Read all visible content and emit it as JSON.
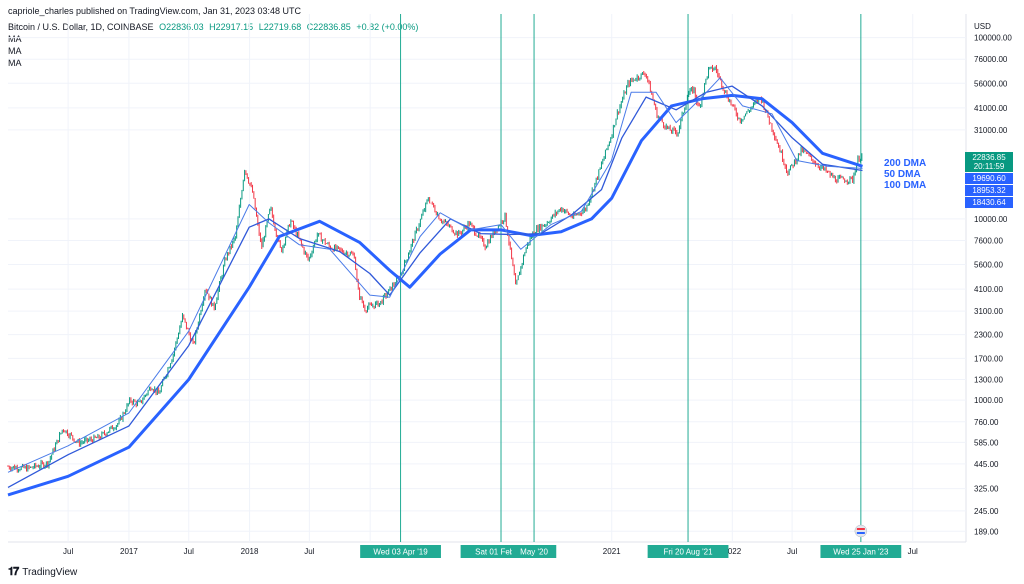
{
  "publisher_line": "capriole_charles published on TradingView.com, Jan 31, 2023 03:48 UTC",
  "symbol_line": {
    "name": "Bitcoin / U.S. Dollar, 1D, COINBASE",
    "open": "O22836.03",
    "high": "H22917.15",
    "low": "L22719.68",
    "close": "C22836.85",
    "change": "+0.82 (+0.00%)"
  },
  "ma_labels": [
    "MA",
    "MA",
    "MA"
  ],
  "currency_label": "USD",
  "footer_brand": "TradingView",
  "colors": {
    "grid": "#f0f3fa",
    "vline": "#22ab94",
    "dma200": "#2962ff",
    "dma100": "#3059d9",
    "dma50": "#4a7be8",
    "up": "#089981",
    "down": "#f23645",
    "badge_price": "#089981",
    "badge_blue": "#2962ff"
  },
  "chart_data": {
    "type": "line",
    "title": "Bitcoin / U.S. Dollar, 1D, COINBASE",
    "yscale": "log",
    "ylim": [
      165,
      135000
    ],
    "xlim": [
      "2016-01-01",
      "2023-11-15"
    ],
    "y_ticks": [
      "100000.00",
      "76000.00",
      "56000.00",
      "41000.00",
      "31000.00",
      "10000.00",
      "7600.00",
      "5600.00",
      "4100.00",
      "3100.00",
      "2300.00",
      "1700.00",
      "1300.00",
      "1000.00",
      "760.00",
      "585.00",
      "445.00",
      "325.00",
      "245.00",
      "189.00"
    ],
    "x_ticks": [
      {
        "date": "2016-07-01",
        "label": "Jul"
      },
      {
        "date": "2017-01-01",
        "label": "2017"
      },
      {
        "date": "2017-07-01",
        "label": "Jul"
      },
      {
        "date": "2018-01-01",
        "label": "2018"
      },
      {
        "date": "2018-07-01",
        "label": "Jul"
      },
      {
        "date": "2019-01-01",
        "label": "20"
      },
      {
        "date": "2021-01-01",
        "label": "2021"
      },
      {
        "date": "2022-01-01",
        "label": "2022"
      },
      {
        "date": "2022-07-01",
        "label": "Jul"
      },
      {
        "date": "2023-07-01",
        "label": "Jul"
      }
    ],
    "vertical_markers": [
      {
        "date": "2019-04-03",
        "label": "Wed 03 Apr '19"
      },
      {
        "date": "2020-02-01",
        "label": "Sat 01 Feb '20"
      },
      {
        "date": "2020-05-11",
        "label": "May '20"
      },
      {
        "date": "2021-08-20",
        "label": "Fri 20 Aug '21"
      },
      {
        "date": "2023-01-25",
        "label": "Wed 25 Jan '23"
      }
    ],
    "price_series": {
      "name": "Bitcoin / U.S. Dollar",
      "points": [
        [
          "2016-01-01",
          430
        ],
        [
          "2016-03-01",
          420
        ],
        [
          "2016-05-01",
          450
        ],
        [
          "2016-06-15",
          700
        ],
        [
          "2016-08-01",
          580
        ],
        [
          "2016-10-01",
          620
        ],
        [
          "2016-12-01",
          750
        ],
        [
          "2017-01-05",
          1000
        ],
        [
          "2017-02-01",
          950
        ],
        [
          "2017-03-10",
          1200
        ],
        [
          "2017-04-01",
          1080
        ],
        [
          "2017-05-15",
          1800
        ],
        [
          "2017-06-12",
          2900
        ],
        [
          "2017-07-15",
          2000
        ],
        [
          "2017-08-20",
          4200
        ],
        [
          "2017-09-15",
          3200
        ],
        [
          "2017-10-20",
          6000
        ],
        [
          "2017-11-20",
          8000
        ],
        [
          "2017-12-17",
          19000
        ],
        [
          "2018-01-10",
          14000
        ],
        [
          "2018-02-06",
          6900
        ],
        [
          "2018-03-05",
          11500
        ],
        [
          "2018-04-06",
          6600
        ],
        [
          "2018-05-05",
          9800
        ],
        [
          "2018-06-28",
          5900
        ],
        [
          "2018-07-25",
          8200
        ],
        [
          "2018-09-01",
          7000
        ],
        [
          "2018-11-14",
          6300
        ],
        [
          "2018-11-25",
          4000
        ],
        [
          "2018-12-15",
          3200
        ],
        [
          "2019-02-01",
          3450
        ],
        [
          "2019-04-03",
          4900
        ],
        [
          "2019-05-15",
          8000
        ],
        [
          "2019-06-26",
          13000
        ],
        [
          "2019-08-01",
          10000
        ],
        [
          "2019-09-25",
          8200
        ],
        [
          "2019-10-27",
          9500
        ],
        [
          "2019-12-15",
          7100
        ],
        [
          "2020-02-13",
          10400
        ],
        [
          "2020-03-12",
          4800
        ],
        [
          "2020-03-13",
          4000
        ],
        [
          "2020-04-15",
          6800
        ],
        [
          "2020-05-11",
          8600
        ],
        [
          "2020-06-15",
          9400
        ],
        [
          "2020-08-01",
          11500
        ],
        [
          "2020-09-05",
          10200
        ],
        [
          "2020-10-15",
          11400
        ],
        [
          "2020-11-25",
          18500
        ],
        [
          "2020-12-31",
          29000
        ],
        [
          "2021-01-15",
          37000
        ],
        [
          "2021-02-20",
          56000
        ],
        [
          "2021-03-15",
          60000
        ],
        [
          "2021-04-14",
          64000
        ],
        [
          "2021-05-19",
          37000
        ],
        [
          "2021-06-22",
          31000
        ],
        [
          "2021-07-20",
          30000
        ],
        [
          "2021-08-20",
          49000
        ],
        [
          "2021-09-07",
          52000
        ],
        [
          "2021-09-21",
          40000
        ],
        [
          "2021-10-20",
          66000
        ],
        [
          "2021-11-10",
          68000
        ],
        [
          "2021-12-15",
          48000
        ],
        [
          "2022-01-24",
          35000
        ],
        [
          "2022-03-28",
          47000
        ],
        [
          "2022-05-12",
          28000
        ],
        [
          "2022-06-18",
          18000
        ],
        [
          "2022-07-30",
          24000
        ],
        [
          "2022-09-15",
          20000
        ],
        [
          "2022-11-10",
          16500
        ],
        [
          "2022-12-31",
          16500
        ],
        [
          "2023-01-15",
          21000
        ],
        [
          "2023-01-30",
          22836.85
        ]
      ]
    },
    "series": [
      {
        "name": "200 DMA",
        "points": [
          [
            "2016-01-01",
            300
          ],
          [
            "2016-07-01",
            380
          ],
          [
            "2017-01-01",
            550
          ],
          [
            "2017-07-01",
            1300
          ],
          [
            "2017-12-31",
            4200
          ],
          [
            "2018-04-01",
            8000
          ],
          [
            "2018-08-01",
            9700
          ],
          [
            "2018-12-01",
            7400
          ],
          [
            "2019-03-01",
            5200
          ],
          [
            "2019-05-01",
            4200
          ],
          [
            "2019-08-01",
            6400
          ],
          [
            "2019-11-01",
            8700
          ],
          [
            "2020-02-01",
            8700
          ],
          [
            "2020-05-01",
            8100
          ],
          [
            "2020-08-01",
            8500
          ],
          [
            "2020-11-01",
            10000
          ],
          [
            "2021-01-01",
            13000
          ],
          [
            "2021-04-01",
            27000
          ],
          [
            "2021-07-01",
            42000
          ],
          [
            "2021-10-01",
            46000
          ],
          [
            "2022-01-01",
            48000
          ],
          [
            "2022-04-01",
            46000
          ],
          [
            "2022-07-01",
            34000
          ],
          [
            "2022-10-01",
            23000
          ],
          [
            "2023-01-30",
            19500
          ]
        ]
      },
      {
        "name": "100 DMA",
        "points": [
          [
            "2016-01-01",
            330
          ],
          [
            "2016-07-01",
            500
          ],
          [
            "2017-01-01",
            720
          ],
          [
            "2017-07-01",
            2000
          ],
          [
            "2017-12-31",
            9000
          ],
          [
            "2018-03-01",
            10000
          ],
          [
            "2018-06-01",
            7800
          ],
          [
            "2018-10-01",
            6600
          ],
          [
            "2018-12-31",
            5000
          ],
          [
            "2019-03-01",
            3800
          ],
          [
            "2019-06-01",
            6500
          ],
          [
            "2019-09-01",
            10000
          ],
          [
            "2019-12-01",
            8300
          ],
          [
            "2020-03-01",
            8200
          ],
          [
            "2020-06-01",
            8300
          ],
          [
            "2020-09-01",
            10500
          ],
          [
            "2020-12-01",
            14500
          ],
          [
            "2021-02-01",
            28000
          ],
          [
            "2021-04-15",
            47000
          ],
          [
            "2021-07-15",
            40000
          ],
          [
            "2021-10-15",
            50000
          ],
          [
            "2021-12-31",
            54000
          ],
          [
            "2022-04-01",
            42000
          ],
          [
            "2022-07-01",
            28000
          ],
          [
            "2022-10-01",
            20000
          ],
          [
            "2023-01-30",
            18500
          ]
        ]
      },
      {
        "name": "50 DMA",
        "points": [
          [
            "2016-01-01",
            400
          ],
          [
            "2016-07-01",
            560
          ],
          [
            "2017-01-01",
            850
          ],
          [
            "2017-07-01",
            2400
          ],
          [
            "2017-12-31",
            12000
          ],
          [
            "2018-03-01",
            9500
          ],
          [
            "2018-06-01",
            7200
          ],
          [
            "2018-09-01",
            6800
          ],
          [
            "2018-12-31",
            3800
          ],
          [
            "2019-03-01",
            3700
          ],
          [
            "2019-06-01",
            8000
          ],
          [
            "2019-08-01",
            10800
          ],
          [
            "2019-11-01",
            8700
          ],
          [
            "2020-02-01",
            9300
          ],
          [
            "2020-04-01",
            6800
          ],
          [
            "2020-07-01",
            9300
          ],
          [
            "2020-10-01",
            11000
          ],
          [
            "2020-12-31",
            21000
          ],
          [
            "2021-03-01",
            50000
          ],
          [
            "2021-05-15",
            50000
          ],
          [
            "2021-07-15",
            34000
          ],
          [
            "2021-10-01",
            47000
          ],
          [
            "2021-11-25",
            60000
          ],
          [
            "2022-02-01",
            42000
          ],
          [
            "2022-05-01",
            38000
          ],
          [
            "2022-07-15",
            21000
          ],
          [
            "2022-10-15",
            19500
          ],
          [
            "2023-01-30",
            19000
          ]
        ]
      }
    ],
    "right_labels": [
      {
        "text": "200 DMA",
        "value": 19690.6
      },
      {
        "text": "50 DMA",
        "value": 18953.32
      },
      {
        "text": "100 DMA",
        "value": 18430.64
      }
    ],
    "price_badges": [
      {
        "text": "22836.85",
        "sub": "20:11:59",
        "value": 22836.85,
        "kind": "price"
      },
      {
        "text": "19690.60",
        "value": 19690.6,
        "kind": "ma"
      },
      {
        "text": "18953.32",
        "value": 18953.32,
        "kind": "ma"
      },
      {
        "text": "18430.64",
        "value": 18430.64,
        "kind": "ma"
      }
    ]
  }
}
